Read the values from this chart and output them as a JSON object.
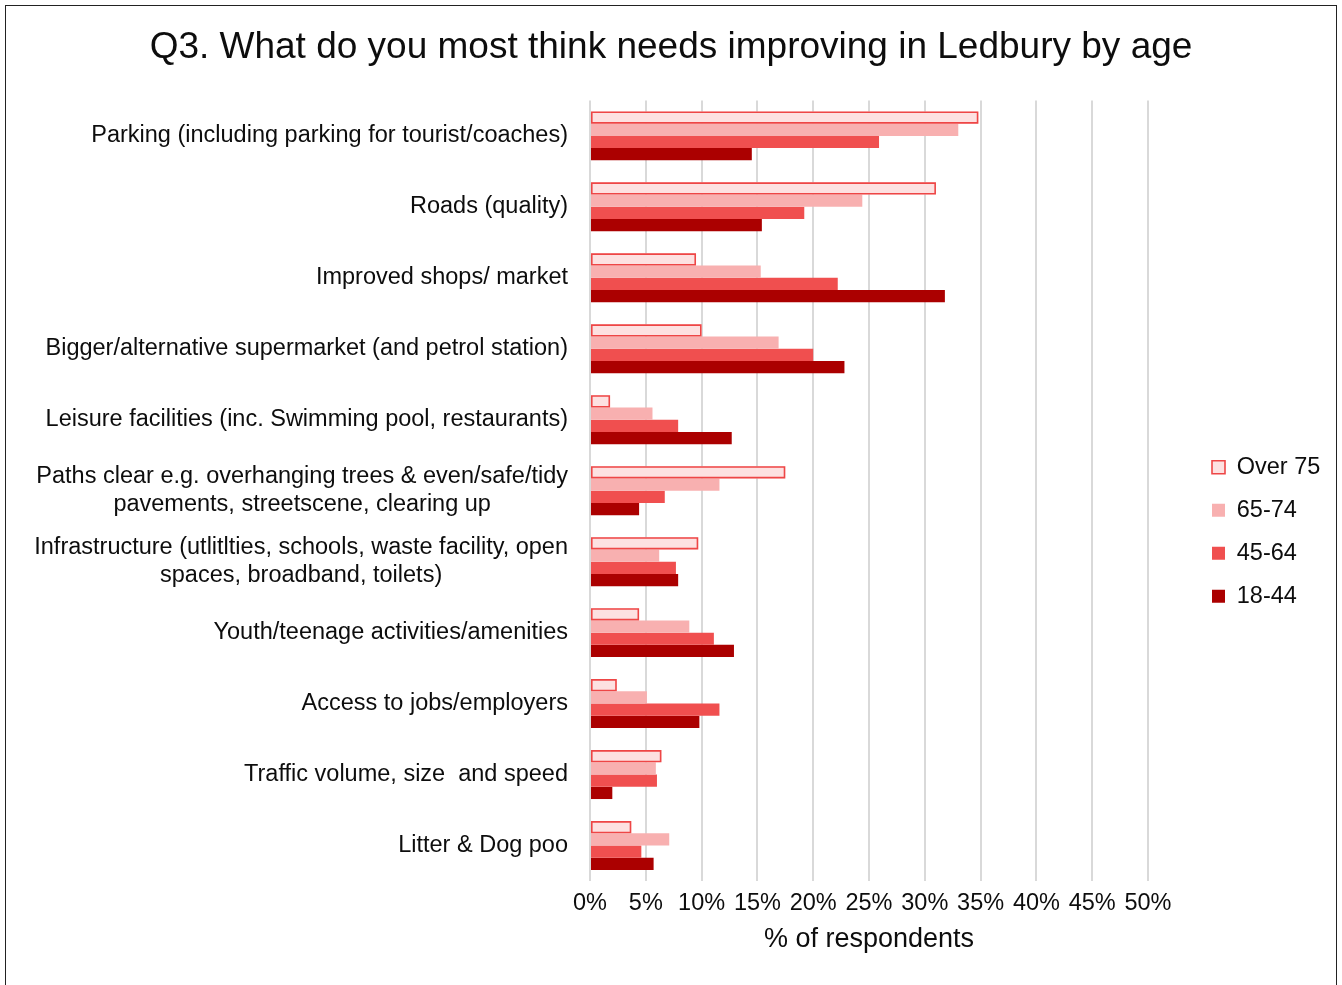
{
  "chart_data": {
    "type": "bar",
    "orientation": "horizontal",
    "title": "Q3. What do you most think needs improving in Ledbury by age",
    "xlabel": "% of respondents",
    "categories": [
      "Parking (including parking for tourist/coaches)",
      "Roads (quality)",
      "Improved shops/ market",
      "Bigger/alternative supermarket (and petrol station)",
      "Leisure facilities (inc. Swimming pool, restaurants)",
      "Paths clear e.g. overhanging trees & even/safe/tidy pavements, streetscene, clearing up",
      "Infrastructure (utlitlties, schools, waste facility, open spaces, broadband, toilets)",
      "Youth/teenage activities/amenities",
      "Access to jobs/employers",
      "Traffic volume, size  and speed",
      "Litter & Dog poo"
    ],
    "series": [
      {
        "name": "Over 75",
        "color": "#fde1e1",
        "values": [
          34.8,
          31.0,
          9.5,
          10.0,
          1.8,
          17.5,
          9.7,
          4.4,
          2.4,
          6.4,
          3.7
        ]
      },
      {
        "name": "65-74",
        "color": "#f8b0b0",
        "values": [
          33.0,
          24.4,
          15.3,
          16.9,
          5.6,
          11.6,
          6.2,
          8.9,
          5.1,
          5.9,
          7.1
        ]
      },
      {
        "name": "45-64",
        "color": "#f04f4f",
        "values": [
          25.9,
          19.2,
          22.2,
          20.0,
          7.9,
          6.7,
          7.7,
          11.1,
          11.6,
          6.0,
          4.6
        ]
      },
      {
        "name": "18-44",
        "color": "#ab0000",
        "values": [
          14.5,
          15.4,
          31.8,
          22.8,
          12.7,
          4.4,
          7.9,
          12.9,
          9.8,
          2.0,
          5.7
        ]
      }
    ],
    "xlim": [
      0,
      50
    ],
    "xticks": [
      {
        "value": 0,
        "label": "0%"
      },
      {
        "value": 5,
        "label": "5%"
      },
      {
        "value": 10,
        "label": "10%"
      },
      {
        "value": 15,
        "label": "15%"
      },
      {
        "value": 20,
        "label": "20%"
      },
      {
        "value": 25,
        "label": "25%"
      },
      {
        "value": 30,
        "label": "30%"
      },
      {
        "value": 35,
        "label": "35%"
      },
      {
        "value": 40,
        "label": "40%"
      },
      {
        "value": 45,
        "label": "45%"
      },
      {
        "value": 50,
        "label": "50%"
      }
    ],
    "grid": "x",
    "legend": "right"
  }
}
